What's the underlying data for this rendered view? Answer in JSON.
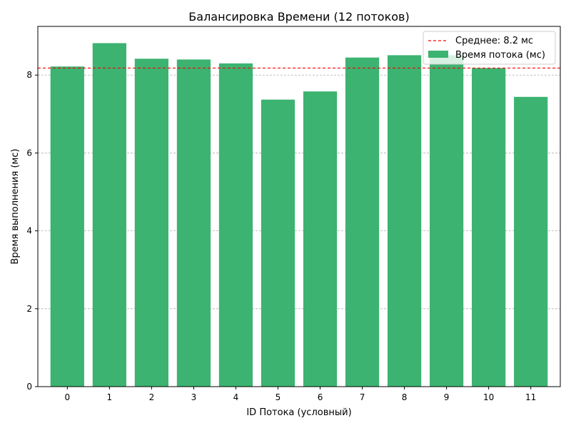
{
  "chart_data": {
    "type": "bar",
    "title": "Балансировка Времени (12 потоков)",
    "xlabel": "ID Потока (условный)",
    "ylabel": "Время выполнения (мс)",
    "categories": [
      "0",
      "1",
      "2",
      "3",
      "4",
      "5",
      "6",
      "7",
      "8",
      "9",
      "10",
      "11"
    ],
    "series": [
      {
        "name": "Время потока (мс)",
        "values": [
          8.22,
          8.82,
          8.42,
          8.4,
          8.3,
          7.37,
          7.58,
          8.45,
          8.51,
          8.51,
          8.18,
          7.44
        ],
        "color": "#3cb371"
      }
    ],
    "mean_line": {
      "value": 8.18,
      "label": "Среднее: 8.2 мс",
      "color": "#ff0000",
      "style": "dashed"
    },
    "ylim": [
      0,
      9.25
    ],
    "yticks": [
      0,
      2,
      4,
      6,
      8
    ],
    "grid": {
      "axis": "y",
      "style": "dashed",
      "color": "#b0b0b0"
    },
    "legend": {
      "position": "top-right"
    }
  }
}
